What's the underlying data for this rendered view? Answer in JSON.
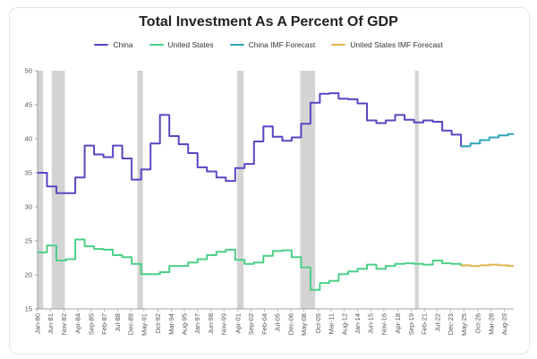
{
  "chart_data": {
    "type": "line",
    "title": "Total Investment As A Percent Of GDP",
    "xlabel": "",
    "ylabel": "",
    "ylim": [
      15,
      50
    ],
    "yticks": [
      "15",
      "20",
      "25",
      "30",
      "35",
      "40",
      "45",
      "50"
    ],
    "xlim": [
      1980,
      2030.6
    ],
    "xticks": [
      {
        "t": 1980.0,
        "label": "Jan-80"
      },
      {
        "t": 1981.4,
        "label": "Jun-81"
      },
      {
        "t": 1982.8,
        "label": "Nov-82"
      },
      {
        "t": 1984.3,
        "label": "Apr-84"
      },
      {
        "t": 1985.7,
        "label": "Sep-85"
      },
      {
        "t": 1987.1,
        "label": "Feb-87"
      },
      {
        "t": 1988.5,
        "label": "Jul-88"
      },
      {
        "t": 1989.9,
        "label": "Dec-89"
      },
      {
        "t": 1991.3,
        "label": "May-91"
      },
      {
        "t": 1992.8,
        "label": "Oct-92"
      },
      {
        "t": 1994.2,
        "label": "Mar-94"
      },
      {
        "t": 1995.6,
        "label": "Aug-95"
      },
      {
        "t": 1997.0,
        "label": "Jan-97"
      },
      {
        "t": 1998.4,
        "label": "Jun-98"
      },
      {
        "t": 1999.8,
        "label": "Nov-99"
      },
      {
        "t": 2001.3,
        "label": "Apr-01"
      },
      {
        "t": 2002.7,
        "label": "Sep-02"
      },
      {
        "t": 2004.1,
        "label": "Feb-04"
      },
      {
        "t": 2005.5,
        "label": "Jul-05"
      },
      {
        "t": 2006.9,
        "label": "Dec-06"
      },
      {
        "t": 2008.3,
        "label": "May-08"
      },
      {
        "t": 2009.8,
        "label": "Oct-09"
      },
      {
        "t": 2011.2,
        "label": "Mar-11"
      },
      {
        "t": 2012.6,
        "label": "Aug-12"
      },
      {
        "t": 2014.0,
        "label": "Jan-14"
      },
      {
        "t": 2015.4,
        "label": "Jun-15"
      },
      {
        "t": 2016.8,
        "label": "Nov-16"
      },
      {
        "t": 2018.3,
        "label": "Apr-18"
      },
      {
        "t": 2019.7,
        "label": "Sep-19"
      },
      {
        "t": 2021.1,
        "label": "Feb-21"
      },
      {
        "t": 2022.5,
        "label": "Jul-22"
      },
      {
        "t": 2023.9,
        "label": "Dec-23"
      },
      {
        "t": 2025.3,
        "label": "May-25"
      },
      {
        "t": 2026.8,
        "label": "Oct-26"
      },
      {
        "t": 2028.2,
        "label": "Mar-28"
      },
      {
        "t": 2029.6,
        "label": "Aug-29"
      }
    ],
    "recessions": [
      [
        1980.0,
        1980.6
      ],
      [
        1981.5,
        1982.9
      ],
      [
        1990.6,
        1991.2
      ],
      [
        2001.2,
        2001.9
      ],
      [
        2007.9,
        2009.5
      ],
      [
        2020.1,
        2020.5
      ]
    ],
    "series": [
      {
        "name": "China",
        "color": "#5b45c2",
        "points": [
          [
            1980,
            35
          ],
          [
            1981,
            33
          ],
          [
            1982,
            32
          ],
          [
            1983,
            32
          ],
          [
            1984,
            34.3
          ],
          [
            1985,
            39
          ],
          [
            1986,
            37.7
          ],
          [
            1987,
            37.3
          ],
          [
            1988,
            39
          ],
          [
            1989,
            37.1
          ],
          [
            1990,
            34
          ],
          [
            1991,
            35.5
          ],
          [
            1992,
            39.3
          ],
          [
            1993,
            43.5
          ],
          [
            1994,
            40.4
          ],
          [
            1995,
            39.2
          ],
          [
            1996,
            37.9
          ],
          [
            1997,
            35.8
          ],
          [
            1998,
            35.2
          ],
          [
            1999,
            34.3
          ],
          [
            2000,
            33.8
          ],
          [
            2001,
            35.7
          ],
          [
            2002,
            36.3
          ],
          [
            2003,
            39.6
          ],
          [
            2004,
            41.8
          ],
          [
            2005,
            40.3
          ],
          [
            2006,
            39.7
          ],
          [
            2007,
            40.2
          ],
          [
            2008,
            42.2
          ],
          [
            2009,
            45.3
          ],
          [
            2010,
            46.6
          ],
          [
            2011,
            46.7
          ],
          [
            2012,
            45.9
          ],
          [
            2013,
            45.8
          ],
          [
            2014,
            45.2
          ],
          [
            2015,
            42.7
          ],
          [
            2016,
            42.3
          ],
          [
            2017,
            42.7
          ],
          [
            2018,
            43.5
          ],
          [
            2019,
            42.8
          ],
          [
            2020,
            42.4
          ],
          [
            2021,
            42.7
          ],
          [
            2022,
            42.5
          ],
          [
            2023,
            41.2
          ],
          [
            2024,
            40.6
          ],
          [
            2025,
            38.9
          ]
        ]
      },
      {
        "name": "United States",
        "color": "#4ccf87",
        "points": [
          [
            1980,
            23.3
          ],
          [
            1981,
            24.3
          ],
          [
            1982,
            22.1
          ],
          [
            1983,
            22.3
          ],
          [
            1984,
            25.2
          ],
          [
            1985,
            24.2
          ],
          [
            1986,
            23.8
          ],
          [
            1987,
            23.7
          ],
          [
            1988,
            22.9
          ],
          [
            1989,
            22.6
          ],
          [
            1990,
            21.6
          ],
          [
            1991,
            20.1
          ],
          [
            1992,
            20.1
          ],
          [
            1993,
            20.4
          ],
          [
            1994,
            21.3
          ],
          [
            1995,
            21.3
          ],
          [
            1996,
            21.8
          ],
          [
            1997,
            22.3
          ],
          [
            1998,
            22.9
          ],
          [
            1999,
            23.4
          ],
          [
            2000,
            23.7
          ],
          [
            2001,
            22.2
          ],
          [
            2002,
            21.6
          ],
          [
            2003,
            21.8
          ],
          [
            2004,
            22.8
          ],
          [
            2005,
            23.5
          ],
          [
            2006,
            23.6
          ],
          [
            2007,
            22.6
          ],
          [
            2008,
            21.1
          ],
          [
            2009,
            17.8
          ],
          [
            2010,
            18.8
          ],
          [
            2011,
            19.1
          ],
          [
            2012,
            20.1
          ],
          [
            2013,
            20.5
          ],
          [
            2014,
            20.9
          ],
          [
            2015,
            21.5
          ],
          [
            2016,
            20.9
          ],
          [
            2017,
            21.3
          ],
          [
            2018,
            21.6
          ],
          [
            2019,
            21.7
          ],
          [
            2020,
            21.6
          ],
          [
            2021,
            21.5
          ],
          [
            2022,
            22.1
          ],
          [
            2023,
            21.7
          ],
          [
            2024,
            21.6
          ],
          [
            2025,
            21.4
          ]
        ]
      },
      {
        "name": "China IMF Forecast",
        "color": "#2ea6b8",
        "points": [
          [
            2025,
            38.9
          ],
          [
            2026,
            39.3
          ],
          [
            2027,
            39.8
          ],
          [
            2028,
            40.2
          ],
          [
            2029,
            40.5
          ],
          [
            2030,
            40.7
          ]
        ]
      },
      {
        "name": "United States IMF Forecast",
        "color": "#e2b64e",
        "points": [
          [
            2025,
            21.4
          ],
          [
            2026,
            21.3
          ],
          [
            2027,
            21.4
          ],
          [
            2028,
            21.5
          ],
          [
            2029,
            21.4
          ],
          [
            2030,
            21.3
          ]
        ]
      }
    ]
  }
}
